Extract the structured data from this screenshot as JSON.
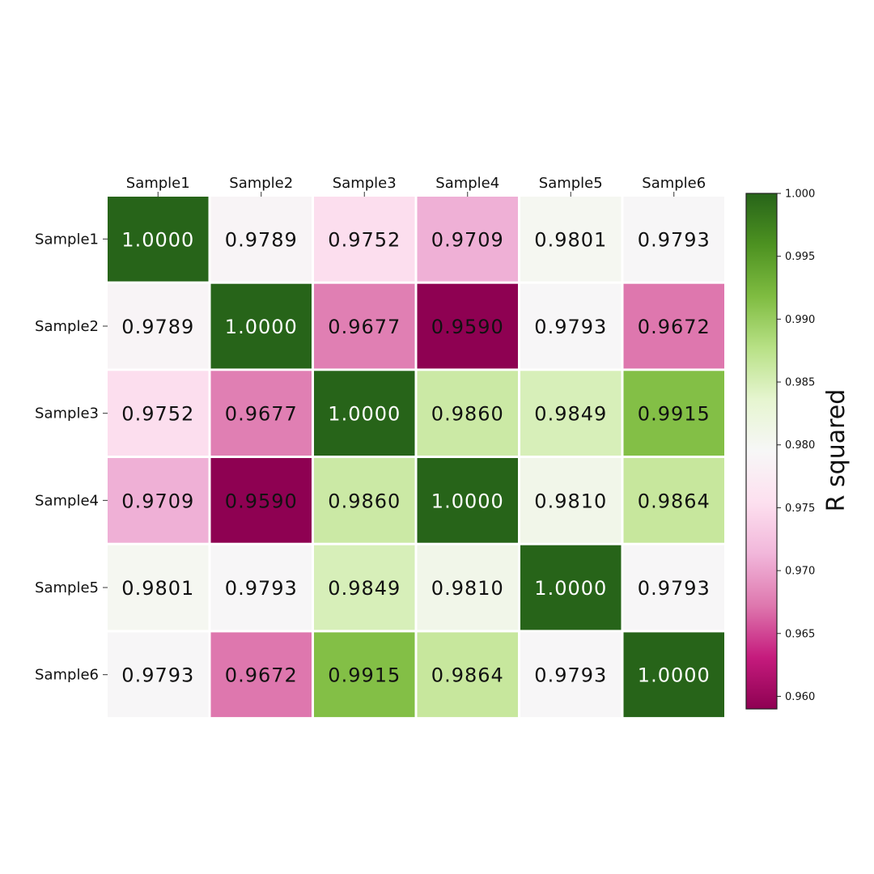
{
  "chart_data": {
    "type": "heatmap",
    "title": "",
    "x_labels": [
      "Sample1",
      "Sample2",
      "Sample3",
      "Sample4",
      "Sample5",
      "Sample6"
    ],
    "y_labels": [
      "Sample1",
      "Sample2",
      "Sample3",
      "Sample4",
      "Sample5",
      "Sample6"
    ],
    "cell_labels": [
      [
        "1.0000",
        "0.9789",
        "0.9752",
        "0.9709",
        "0.9801",
        "0.9793"
      ],
      [
        "0.9789",
        "1.0000",
        "0.9677",
        "0.9590",
        "0.9793",
        "0.9672"
      ],
      [
        "0.9752",
        "0.9677",
        "1.0000",
        "0.9860",
        "0.9849",
        "0.9915"
      ],
      [
        "0.9709",
        "0.9590",
        "0.9860",
        "1.0000",
        "0.9810",
        "0.9864"
      ],
      [
        "0.9801",
        "0.9793",
        "0.9849",
        "0.9810",
        "1.0000",
        "0.9793"
      ],
      [
        "0.9793",
        "0.9672",
        "0.9915",
        "0.9864",
        "0.9793",
        "1.0000"
      ]
    ],
    "values": [
      [
        1.0,
        0.9789,
        0.9752,
        0.9709,
        0.9801,
        0.9793
      ],
      [
        0.9789,
        1.0,
        0.9677,
        0.959,
        0.9793,
        0.9672
      ],
      [
        0.9752,
        0.9677,
        1.0,
        0.986,
        0.9849,
        0.9915
      ],
      [
        0.9709,
        0.959,
        0.986,
        1.0,
        0.981,
        0.9864
      ],
      [
        0.9801,
        0.9793,
        0.9849,
        0.981,
        1.0,
        0.9793
      ],
      [
        0.9793,
        0.9672,
        0.9915,
        0.9864,
        0.9793,
        1.0
      ]
    ],
    "colorbar": {
      "label": "R squared",
      "range": [
        0.959,
        1.0
      ],
      "colormap": "PiYG",
      "ticks": [
        0.96,
        0.965,
        0.97,
        0.975,
        0.98,
        0.985,
        0.99,
        0.995,
        1.0
      ],
      "tick_labels": [
        "0.960",
        "0.965",
        "0.970",
        "0.975",
        "0.980",
        "0.985",
        "0.990",
        "0.995",
        "1.000"
      ]
    },
    "x_axis_position": "top",
    "grid": false
  }
}
